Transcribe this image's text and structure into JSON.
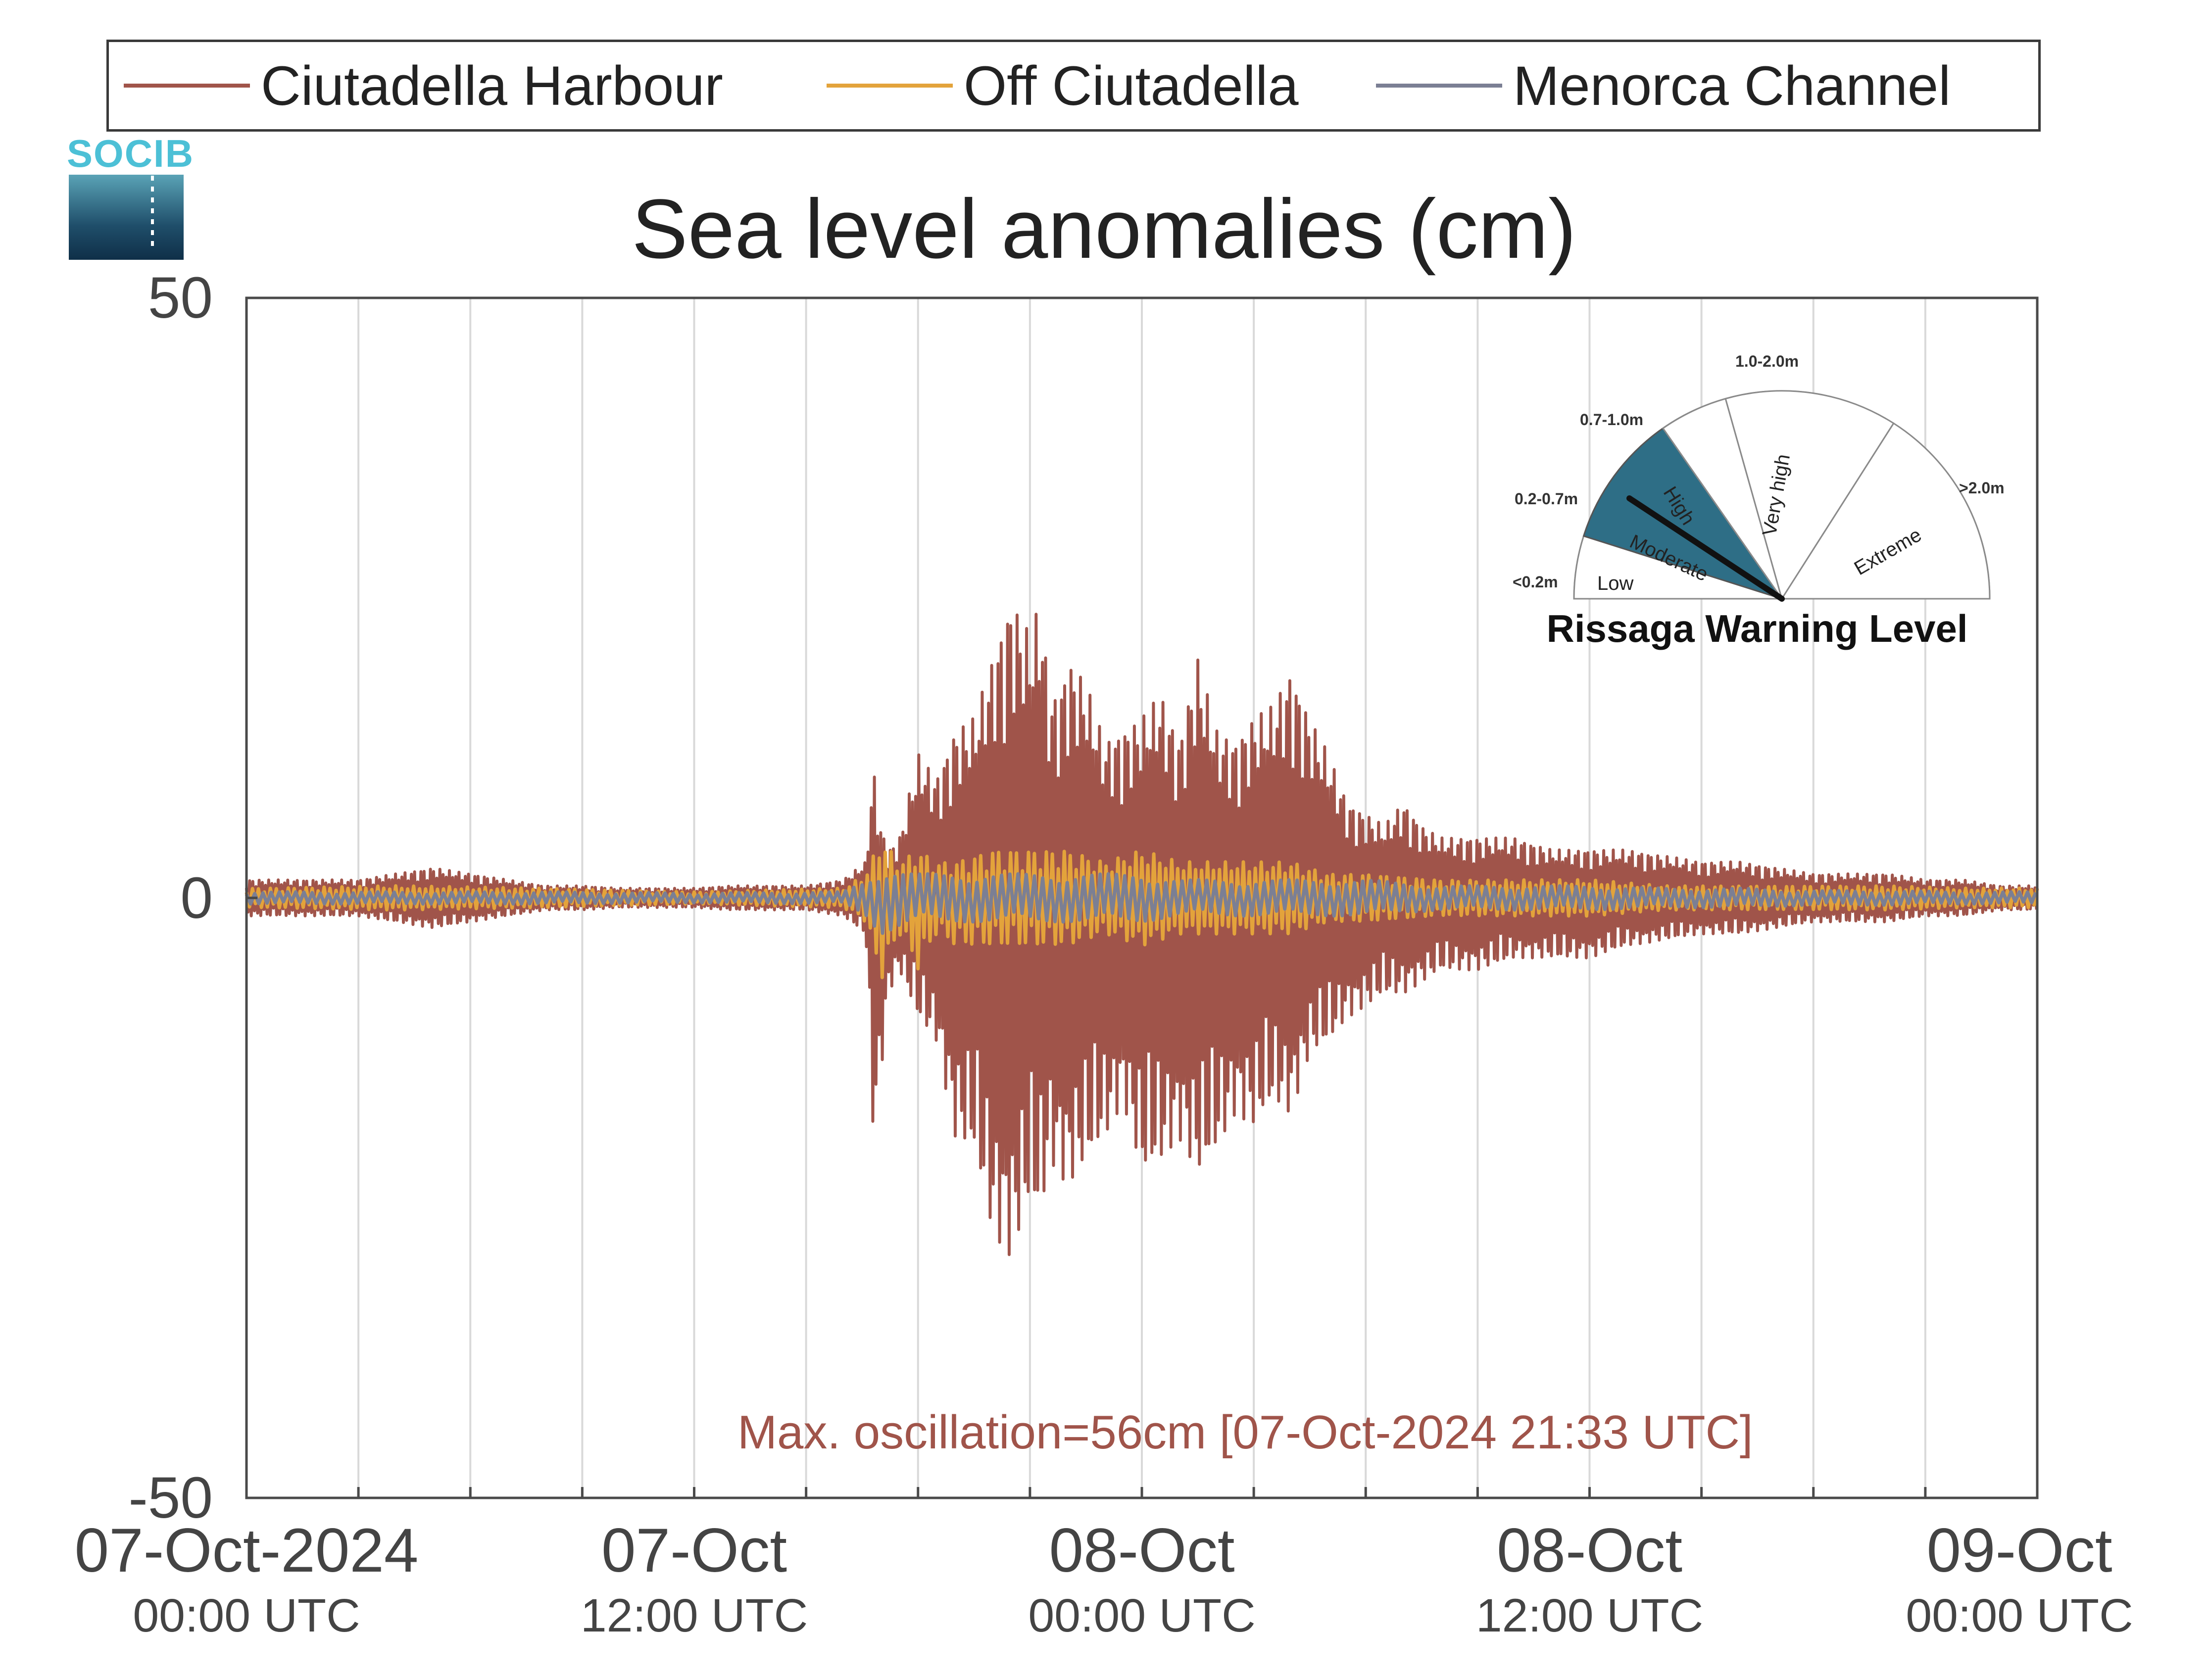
{
  "title": "Sea level anomalies (cm)",
  "logo_text": "SOCIB",
  "annotation": "Max. oscillation=56cm [07-Oct-2024 21:33 UTC]",
  "chart_data": {
    "type": "line",
    "title": "Sea level anomalies (cm)",
    "xlabel": "",
    "ylabel": "",
    "x_unit": "hours since 07-Oct-2024 00:00 UTC",
    "xlim": [
      0,
      48
    ],
    "ylim": [
      -50,
      50
    ],
    "yticks": [
      50,
      0,
      -50
    ],
    "x_tick_labels": [
      {
        "hours": 0,
        "date": "07-Oct-2024",
        "time": "00:00 UTC"
      },
      {
        "hours": 12,
        "date": "07-Oct",
        "time": "12:00 UTC"
      },
      {
        "hours": 24,
        "date": "08-Oct",
        "time": "00:00 UTC"
      },
      {
        "hours": 36,
        "date": "08-Oct",
        "time": "12:00 UTC"
      },
      {
        "hours": 48,
        "date": "09-Oct",
        "time": "00:00 UTC"
      }
    ],
    "grid": "vertical",
    "legend": "top",
    "series": [
      {
        "name": "Ciutadella Harbour",
        "color": "#a0544a",
        "x": [
          0,
          1,
          2,
          3,
          4,
          5,
          6,
          7,
          8,
          9,
          10,
          11,
          12,
          13,
          14,
          15,
          16,
          16.6,
          16.8,
          17,
          17.2,
          17.5,
          18,
          18.5,
          19,
          19.5,
          20,
          20.5,
          21,
          21.3,
          21.5,
          21.8,
          22,
          22.5,
          23,
          23.5,
          24,
          24.5,
          25,
          25.5,
          26,
          26.5,
          27,
          27.5,
          28,
          28.5,
          29,
          29.5,
          30,
          30.5,
          31,
          31.5,
          32,
          33,
          34,
          35,
          36,
          37,
          38,
          39,
          40,
          41,
          42,
          43,
          44,
          45,
          46,
          47,
          48
        ],
        "min": [
          -1.5,
          -1.5,
          -1.5,
          -1.5,
          -2,
          -2.5,
          -2,
          -1.5,
          -1,
          -1,
          -0.8,
          -0.8,
          -0.8,
          -1,
          -1,
          -1,
          -1.5,
          -3,
          -20,
          -15,
          -8,
          -6,
          -10,
          -12,
          -20,
          -21,
          -28,
          -30,
          -25,
          -27,
          -22,
          -23,
          -24,
          -22,
          -20,
          -17,
          -23,
          -22,
          -20,
          -23,
          -21,
          -18,
          -19,
          -17,
          -18,
          -13,
          -12,
          -10,
          -9,
          -8,
          -8,
          -7,
          -6,
          -6,
          -5,
          -5,
          -5,
          -4,
          -3.5,
          -3,
          -3,
          -2.5,
          -2,
          -2,
          -2,
          -1.5,
          -1.5,
          -1,
          -1
        ],
        "max": [
          1.5,
          1.5,
          1.5,
          1.5,
          2,
          2.5,
          2,
          1.5,
          1,
          1,
          0.8,
          0.8,
          0.8,
          1,
          1,
          1,
          1.5,
          3,
          11,
          6,
          4,
          5,
          12,
          10,
          14,
          15,
          20,
          25,
          22,
          25,
          17,
          17,
          20,
          18,
          13,
          14,
          15,
          17,
          13,
          20,
          14,
          13,
          15,
          16,
          19,
          15,
          12,
          8,
          7,
          6,
          8,
          6,
          5,
          5,
          5,
          4,
          4,
          4,
          3.5,
          3,
          3,
          2.5,
          2,
          2,
          2,
          1.5,
          1.5,
          1,
          1
        ]
      },
      {
        "name": "Off Ciutadella",
        "color": "#e3a33b",
        "x": [
          0,
          4,
          8,
          12,
          16,
          16.6,
          17,
          17.5,
          18,
          18.5,
          19,
          20,
          21,
          22,
          23,
          24,
          25,
          26,
          27,
          28,
          29,
          30,
          32,
          34,
          36,
          38,
          40,
          42,
          44,
          46,
          48
        ],
        "min": [
          -0.8,
          -1,
          -0.8,
          -0.5,
          -0.8,
          -2,
          -7,
          -3,
          -6,
          -3,
          -4,
          -4,
          -4,
          -4,
          -3,
          -4,
          -3,
          -3,
          -3,
          -3,
          -2,
          -2,
          -1.5,
          -1.5,
          -1.5,
          -1,
          -1,
          -1,
          -1,
          -0.8,
          -0.8
        ],
        "max": [
          0.8,
          1,
          0.8,
          0.5,
          0.8,
          2,
          5,
          3,
          4,
          3,
          3,
          4,
          4,
          4,
          3,
          4,
          3,
          3,
          3,
          3,
          2,
          2,
          1.5,
          1.5,
          1.5,
          1,
          1,
          1,
          1,
          0.8,
          0.8
        ]
      },
      {
        "name": "Menorca Channel",
        "color": "#7b7f94",
        "x": [
          0,
          4,
          8,
          12,
          16,
          16.6,
          17,
          18,
          19,
          20,
          21,
          22,
          23,
          24,
          25,
          26,
          27,
          28,
          29,
          30,
          32,
          34,
          36,
          38,
          40,
          42,
          44,
          46,
          48
        ],
        "min": [
          -0.5,
          -0.5,
          -0.5,
          -0.4,
          -0.5,
          -1.5,
          -3,
          -2,
          -2,
          -2,
          -2,
          -2,
          -2,
          -2,
          -1.5,
          -1.5,
          -1.5,
          -1.5,
          -1.5,
          -1.5,
          -1,
          -1,
          -1,
          -0.8,
          -0.8,
          -0.6,
          -0.6,
          -0.5,
          -0.5
        ],
        "max": [
          0.5,
          0.5,
          0.5,
          0.4,
          0.5,
          1.5,
          2.5,
          2,
          2,
          2,
          2,
          2,
          2,
          2,
          1.5,
          1.5,
          1.5,
          1.5,
          1.5,
          1.5,
          1,
          1,
          1,
          0.8,
          0.8,
          0.6,
          0.6,
          0.5,
          0.5
        ]
      }
    ]
  },
  "gauge": {
    "title": "Rissaga Warning Level",
    "active_level": "Moderate",
    "active_color": "#2e6e86",
    "levels": [
      {
        "name": "Low",
        "range": "<0.2m",
        "range_color": "#8a8f5a"
      },
      {
        "name": "Moderate",
        "range": "0.2-0.7m",
        "range_color": "#2e6e86"
      },
      {
        "name": "High",
        "range": "0.7-1.0m",
        "range_color": "#e8d21a"
      },
      {
        "name": "Very high",
        "range": "1.0-2.0m",
        "range_color": "#e8941a"
      },
      {
        "name": "Extreme",
        "range": ">2.0m",
        "range_color": "#d8232a"
      }
    ]
  }
}
